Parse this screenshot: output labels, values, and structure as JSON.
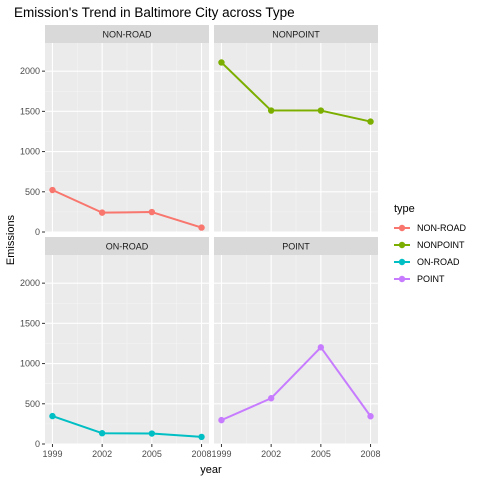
{
  "chart_data": {
    "type": "line",
    "title": "Emission's Trend in Baltimore City across Type",
    "xlabel": "year",
    "ylabel": "Emissions",
    "x": [
      1999,
      2002,
      2005,
      2008
    ],
    "ylim": [
      0,
      2350
    ],
    "yticks": [
      0,
      500,
      1000,
      1500,
      2000
    ],
    "grid": true,
    "legend": {
      "title": "type",
      "position": "right"
    },
    "facets": [
      {
        "name": "NON-ROAD",
        "color": "#F8766D",
        "values": [
          522,
          241,
          248,
          55
        ]
      },
      {
        "name": "NONPOINT",
        "color": "#7CAE00",
        "values": [
          2108,
          1510,
          1510,
          1373
        ]
      },
      {
        "name": "ON-ROAD",
        "color": "#00BFC4",
        "values": [
          347,
          134,
          130,
          88
        ]
      },
      {
        "name": "POINT",
        "color": "#C77CFF",
        "values": [
          297,
          569,
          1202,
          345
        ]
      }
    ]
  }
}
